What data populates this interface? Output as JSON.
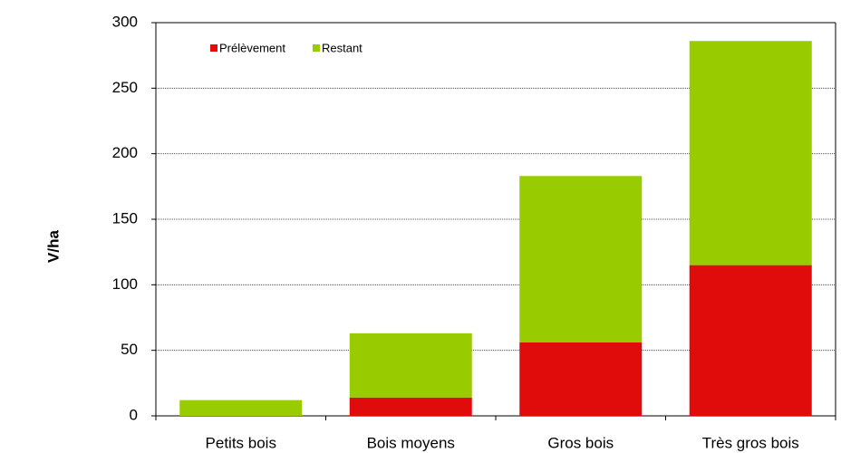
{
  "chart_data": {
    "type": "bar",
    "stacked": true,
    "y_label": "V/ha",
    "categories": [
      "Petits bois",
      "Bois moyens",
      "Gros bois",
      "Très gros bois"
    ],
    "series": [
      {
        "name": "Prélèvement",
        "color": "#e00c0c",
        "values": [
          0,
          14,
          56,
          115
        ]
      },
      {
        "name": "Restant",
        "color": "#99cc00",
        "values": [
          12,
          49,
          127,
          171
        ]
      }
    ],
    "ylim": [
      0,
      300
    ],
    "yticks": [
      0,
      50,
      100,
      150,
      200,
      250,
      300
    ],
    "grid": true,
    "legend": "top-left"
  }
}
